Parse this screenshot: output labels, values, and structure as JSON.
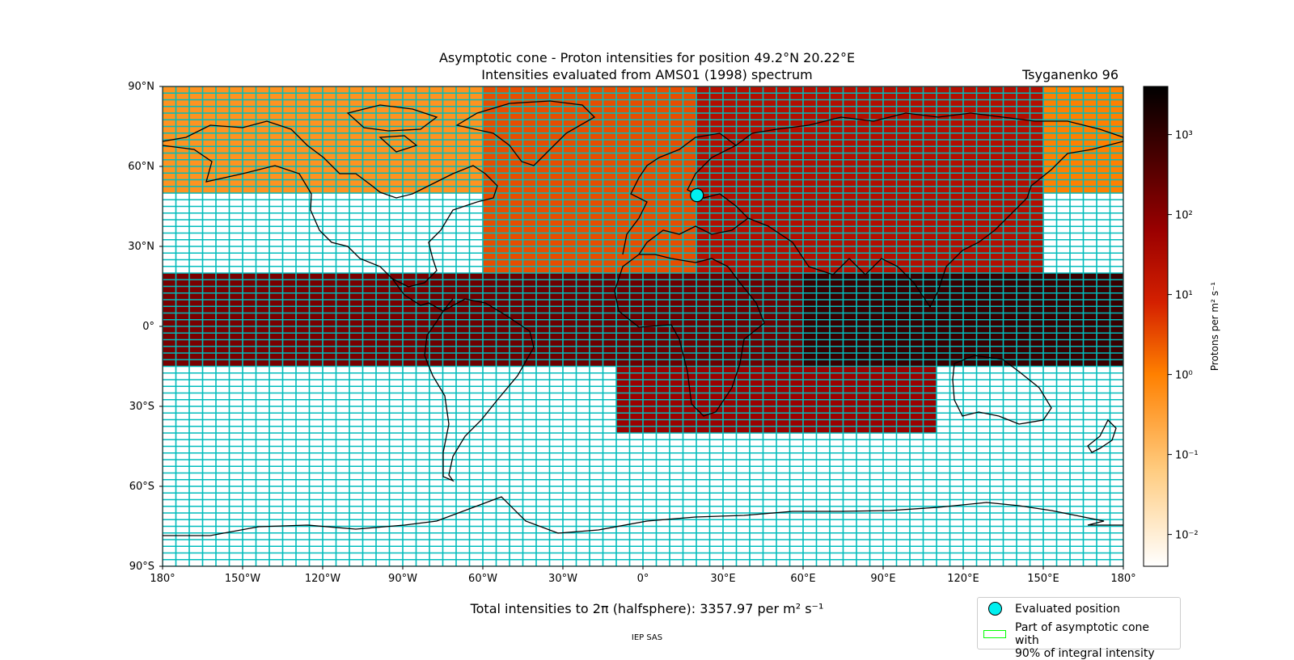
{
  "title_line1": "Asymptotic cone - Proton intensities for position 49.2°N 20.22°E",
  "title_line2": "Intensities evaluated from AMS01 (1998) spectrum",
  "model_label": "Tsyganenko 96",
  "total_label": "Total intensities to 2π (halfsphere): 3357.97 per m² s⁻¹",
  "credit": "IEP SAS",
  "legend": {
    "evaluated_position": "Evaluated position",
    "cone_line1": "Part of asymptotic cone with",
    "cone_line2": "90% of integral intensity"
  },
  "colors": {
    "grid_line": "#00bcbc",
    "cone_outline": "#00ff00",
    "position_marker": "#00f0f0"
  },
  "chart_data": {
    "type": "heatmap",
    "projection": "equirectangular world map with coastlines",
    "xlim": [
      -180,
      180
    ],
    "ylim": [
      -90,
      90
    ],
    "x_tick_values": [
      -180,
      -150,
      -120,
      -90,
      -60,
      -30,
      0,
      30,
      60,
      90,
      120,
      150,
      180
    ],
    "x_tick_labels": [
      "180°",
      "150°W",
      "120°W",
      "90°W",
      "60°W",
      "30°W",
      "0°",
      "30°E",
      "60°E",
      "90°E",
      "120°E",
      "150°E",
      "180°"
    ],
    "y_tick_values": [
      90,
      60,
      30,
      0,
      -30,
      -60,
      -90
    ],
    "y_tick_labels": [
      "90°N",
      "60°N",
      "30°N",
      "0°",
      "30°S",
      "60°S",
      "90°S"
    ],
    "cell_size_deg": [
      5,
      2.5
    ],
    "grid": true,
    "colorbar": {
      "label": "Protons per m² s⁻¹",
      "scale": "log",
      "range": [
        0.004,
        4000
      ],
      "tick_values": [
        1000,
        100,
        10,
        1,
        0.1,
        0.01
      ],
      "tick_labels": [
        "10³",
        "10²",
        "10¹",
        "10⁰",
        "10⁻¹",
        "10⁻²"
      ],
      "colormap": "gist_heat_r"
    },
    "evaluated_position": {
      "lat": 49.2,
      "lon": 20.22
    },
    "regions": [
      {
        "lat_range": [
          50,
          90
        ],
        "lon_range": [
          -180,
          -60
        ],
        "approx_value": 0.5
      },
      {
        "lat_range": [
          20,
          90
        ],
        "lon_range": [
          -60,
          20
        ],
        "approx_value": 3
      },
      {
        "lat_range": [
          20,
          90
        ],
        "lon_range": [
          20,
          150
        ],
        "approx_value": 25
      },
      {
        "lat_range": [
          50,
          90
        ],
        "lon_range": [
          150,
          180
        ],
        "approx_value": 1
      },
      {
        "lat_range": [
          -15,
          20
        ],
        "lon_range": [
          -180,
          -80
        ],
        "approx_value": 150
      },
      {
        "lat_range": [
          -15,
          20
        ],
        "lon_range": [
          -80,
          60
        ],
        "approx_value": 200
      },
      {
        "lat_range": [
          -15,
          20
        ],
        "lon_range": [
          60,
          180
        ],
        "approx_value": 800
      },
      {
        "lat_range": [
          -40,
          -15
        ],
        "lon_range": [
          -10,
          110
        ],
        "approx_value": 60
      }
    ]
  }
}
